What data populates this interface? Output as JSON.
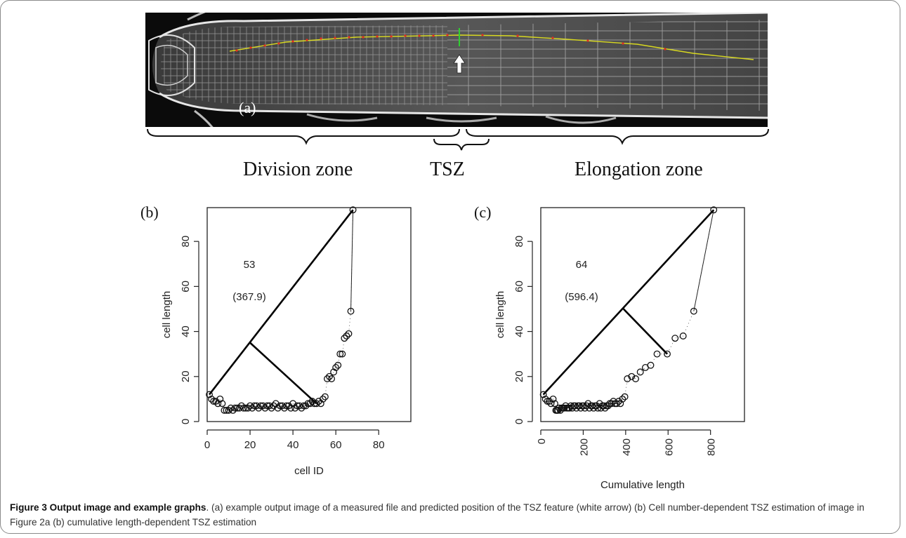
{
  "figure": {
    "panel_a": {
      "label": "(a)",
      "zones": [
        "Division zone",
        "TSZ",
        "Elongation zone"
      ],
      "arrow": "white arrow marking predicted TSZ position"
    },
    "caption": {
      "title": "Figure 3 Output image and example graphs",
      "text": ". (a) example output image of a measured file and predicted position of the TSZ feature (white arrow) (b) Cell number-dependent TSZ estimation of image in Figure 2a (b) cumulative length-dependent TSZ estimation"
    }
  },
  "chart_data": [
    {
      "type": "scatter",
      "panel": "(b)",
      "xlabel": "cell ID",
      "ylabel": "cell length",
      "xlim": [
        0,
        95
      ],
      "ylim": [
        0,
        95
      ],
      "xticks": [
        0,
        20,
        40,
        60,
        80
      ],
      "yticks": [
        0,
        20,
        40,
        60,
        80
      ],
      "annotation": [
        "53",
        "(367.9)"
      ],
      "colors": {
        "marker": "#111111",
        "line": "#000000"
      },
      "points": [
        [
          1,
          12
        ],
        [
          2,
          10
        ],
        [
          3,
          9
        ],
        [
          4,
          9
        ],
        [
          5,
          8
        ],
        [
          6,
          10
        ],
        [
          7,
          8
        ],
        [
          8,
          5
        ],
        [
          9,
          5
        ],
        [
          10,
          5
        ],
        [
          11,
          6
        ],
        [
          12,
          5
        ],
        [
          13,
          6
        ],
        [
          14,
          6
        ],
        [
          15,
          6
        ],
        [
          16,
          7
        ],
        [
          17,
          6
        ],
        [
          18,
          6
        ],
        [
          19,
          6
        ],
        [
          20,
          7
        ],
        [
          21,
          6
        ],
        [
          22,
          7
        ],
        [
          23,
          7
        ],
        [
          24,
          6
        ],
        [
          25,
          7
        ],
        [
          26,
          7
        ],
        [
          27,
          6
        ],
        [
          28,
          7
        ],
        [
          29,
          7
        ],
        [
          30,
          6
        ],
        [
          31,
          7
        ],
        [
          32,
          8
        ],
        [
          33,
          6
        ],
        [
          34,
          7
        ],
        [
          35,
          7
        ],
        [
          36,
          6
        ],
        [
          37,
          7
        ],
        [
          38,
          7
        ],
        [
          39,
          6
        ],
        [
          40,
          8
        ],
        [
          41,
          6
        ],
        [
          42,
          7
        ],
        [
          43,
          7
        ],
        [
          44,
          6
        ],
        [
          45,
          7
        ],
        [
          46,
          7
        ],
        [
          47,
          8
        ],
        [
          48,
          8
        ],
        [
          49,
          9
        ],
        [
          50,
          8
        ],
        [
          51,
          8
        ],
        [
          52,
          9
        ],
        [
          53,
          8
        ],
        [
          54,
          10
        ],
        [
          55,
          11
        ],
        [
          56,
          19
        ],
        [
          57,
          20
        ],
        [
          58,
          19
        ],
        [
          59,
          22
        ],
        [
          60,
          24
        ],
        [
          61,
          25
        ],
        [
          62,
          30
        ],
        [
          63,
          30
        ],
        [
          64,
          37
        ],
        [
          65,
          38
        ],
        [
          66,
          39
        ],
        [
          67,
          49
        ],
        [
          68,
          94
        ]
      ],
      "knee_point": [
        53,
        8
      ],
      "baseline": [
        [
          1,
          12
        ],
        [
          68,
          94
        ]
      ],
      "perpendicular": [
        [
          20,
          35
        ],
        [
          51,
          8
        ]
      ]
    },
    {
      "type": "scatter",
      "panel": "(c)",
      "xlabel": "Cumulative length",
      "ylabel": "cell length",
      "xlim": [
        0,
        960
      ],
      "ylim": [
        0,
        95
      ],
      "xticks": [
        0,
        200,
        400,
        600,
        800
      ],
      "yticks": [
        0,
        20,
        40,
        60,
        80
      ],
      "annotation": [
        "64",
        "(596.4)"
      ],
      "colors": {
        "marker": "#111111",
        "line": "#000000"
      },
      "points": [
        [
          12,
          12
        ],
        [
          22,
          10
        ],
        [
          31,
          9
        ],
        [
          40,
          9
        ],
        [
          48,
          8
        ],
        [
          58,
          10
        ],
        [
          66,
          8
        ],
        [
          71,
          5
        ],
        [
          76,
          5
        ],
        [
          81,
          5
        ],
        [
          87,
          6
        ],
        [
          92,
          5
        ],
        [
          98,
          6
        ],
        [
          104,
          6
        ],
        [
          110,
          6
        ],
        [
          117,
          7
        ],
        [
          123,
          6
        ],
        [
          129,
          6
        ],
        [
          135,
          6
        ],
        [
          142,
          7
        ],
        [
          148,
          6
        ],
        [
          155,
          7
        ],
        [
          162,
          7
        ],
        [
          168,
          6
        ],
        [
          175,
          7
        ],
        [
          182,
          7
        ],
        [
          188,
          6
        ],
        [
          195,
          7
        ],
        [
          202,
          7
        ],
        [
          208,
          6
        ],
        [
          215,
          7
        ],
        [
          223,
          8
        ],
        [
          229,
          6
        ],
        [
          236,
          7
        ],
        [
          243,
          7
        ],
        [
          249,
          6
        ],
        [
          256,
          7
        ],
        [
          263,
          7
        ],
        [
          269,
          6
        ],
        [
          277,
          8
        ],
        [
          283,
          6
        ],
        [
          290,
          7
        ],
        [
          297,
          7
        ],
        [
          303,
          6
        ],
        [
          310,
          7
        ],
        [
          317,
          7
        ],
        [
          325,
          8
        ],
        [
          333,
          8
        ],
        [
          342,
          9
        ],
        [
          350,
          8
        ],
        [
          358,
          8
        ],
        [
          367,
          9
        ],
        [
          375,
          8
        ],
        [
          385,
          10
        ],
        [
          396,
          11
        ],
        [
          408,
          19
        ],
        [
          428,
          20
        ],
        [
          447,
          19
        ],
        [
          469,
          22
        ],
        [
          493,
          24
        ],
        [
          518,
          25
        ],
        [
          548,
          30
        ],
        [
          596,
          30
        ],
        [
          633,
          37
        ],
        [
          671,
          38
        ],
        [
          721,
          49
        ],
        [
          815,
          94
        ]
      ],
      "knee_point": [
        596,
        30
      ],
      "baseline": [
        [
          12,
          12
        ],
        [
          815,
          94
        ]
      ],
      "perpendicular": [
        [
          390,
          50
        ],
        [
          596,
          30
        ]
      ]
    }
  ]
}
